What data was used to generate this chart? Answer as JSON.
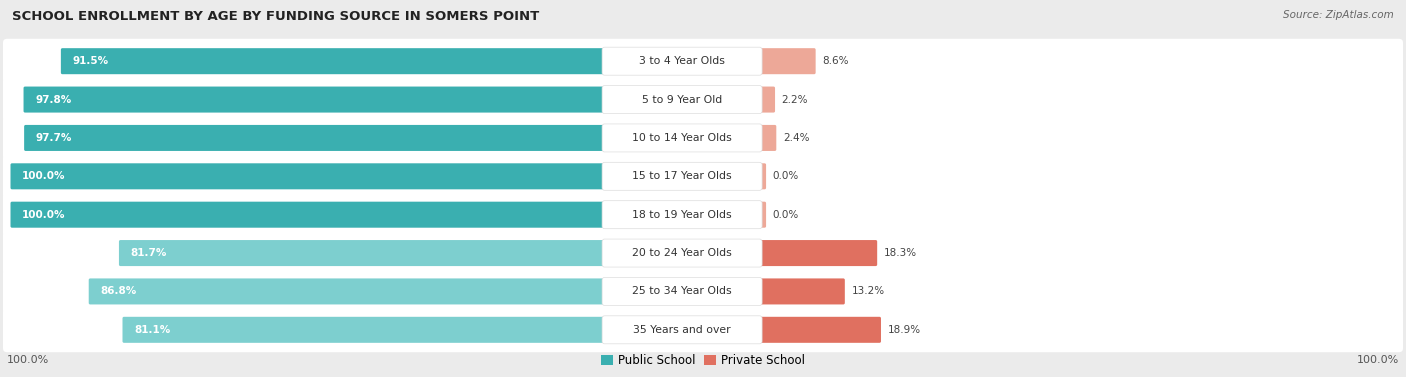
{
  "title": "SCHOOL ENROLLMENT BY AGE BY FUNDING SOURCE IN SOMERS POINT",
  "source": "Source: ZipAtlas.com",
  "categories": [
    "3 to 4 Year Olds",
    "5 to 9 Year Old",
    "10 to 14 Year Olds",
    "15 to 17 Year Olds",
    "18 to 19 Year Olds",
    "20 to 24 Year Olds",
    "25 to 34 Year Olds",
    "35 Years and over"
  ],
  "public_values": [
    91.5,
    97.8,
    97.7,
    100.0,
    100.0,
    81.7,
    86.8,
    81.1
  ],
  "private_values": [
    8.6,
    2.2,
    2.4,
    0.0,
    0.0,
    18.3,
    13.2,
    18.9
  ],
  "public_labels": [
    "91.5%",
    "97.8%",
    "97.7%",
    "100.0%",
    "100.0%",
    "81.7%",
    "86.8%",
    "81.1%"
  ],
  "private_labels": [
    "8.6%",
    "2.2%",
    "2.4%",
    "0.0%",
    "0.0%",
    "18.3%",
    "13.2%",
    "18.9%"
  ],
  "public_color_dark": "#3AAFB0",
  "public_color_light": "#7DCFCF",
  "private_color_dark": "#E07060",
  "private_color_light": "#EDA898",
  "background_color": "#EBEBEB",
  "row_bg_color": "#F5F5F5",
  "axis_label_left": "100.0%",
  "axis_label_right": "100.0%",
  "dark_threshold": 90.0
}
